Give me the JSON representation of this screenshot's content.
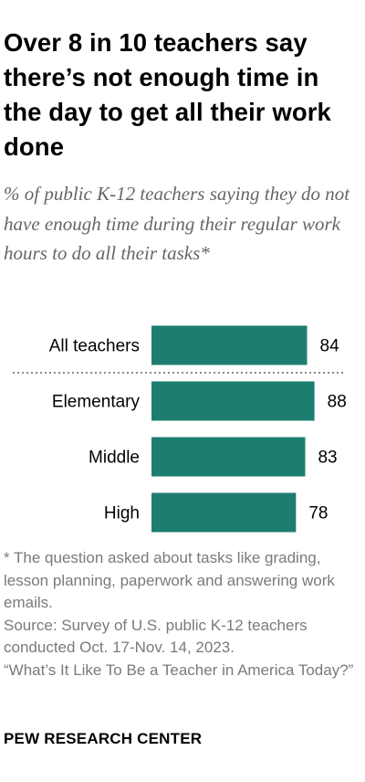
{
  "title": "Over 8 in 10 teachers say there’s not enough time in the day to get all their work done",
  "subtitle": "% of public K-12 teachers saying they do not have enough time during their regular work hours to do all their tasks*",
  "chart_data": {
    "type": "bar",
    "orientation": "horizontal",
    "categories": [
      "All teachers",
      "Elementary",
      "Middle",
      "High"
    ],
    "values": [
      84,
      88,
      83,
      78
    ],
    "value_labels": [
      "84",
      "88",
      "83",
      "78"
    ],
    "xlim": [
      0,
      100
    ],
    "separator_after_index": 0,
    "bar_color": "#1d7d6f",
    "grid": false,
    "title": "",
    "xlabel": "",
    "ylabel": ""
  },
  "notes": [
    "* The question asked about tasks like grading, lesson planning, paperwork and answering work emails.",
    "Source: Survey of U.S. public K-12 teachers conducted Oct. 17-Nov. 14, 2023.",
    "“What’s It Like To Be a Teacher in America Today?”"
  ],
  "logo": "PEW RESEARCH CENTER"
}
